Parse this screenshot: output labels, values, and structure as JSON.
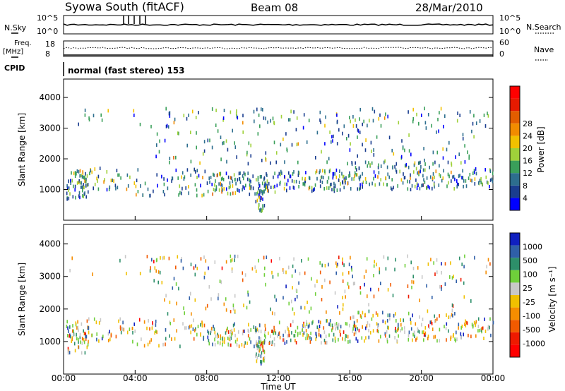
{
  "header": {
    "title": "Syowa South (fitACF)",
    "beam": "Beam 08",
    "date": "28/Mar/2010"
  },
  "top_panels": {
    "nsky_label": "N.Sky",
    "nsearch_label": "N.Search",
    "power_axis_ticks": [
      "10^5",
      "10^0"
    ],
    "freq_label": "Freq.",
    "freq_unit": "[MHz]",
    "freq_ticks": [
      "18",
      "8"
    ],
    "nave_label": "Nave",
    "nave_ticks": [
      "60",
      "0"
    ],
    "cpid_label": "CPID",
    "cpid_text": "normal (fast stereo) 153"
  },
  "colors": {
    "power_scale": [
      "#0000ff",
      "#1a3d8f",
      "#2d6e8e",
      "#3a9f5a",
      "#9fd13a",
      "#f2c100",
      "#f28c00",
      "#e35d00",
      "#e61a00",
      "#ff0000"
    ],
    "velocity_scale": [
      "#1020c0",
      "#2f5fa8",
      "#2d8f6a",
      "#6fcf3a",
      "#c8c8c8",
      "#f0c000",
      "#f58d00",
      "#f25a00",
      "#ee1a00",
      "#ff0000"
    ]
  },
  "chart_data": [
    {
      "type": "heatmap",
      "panel": "power",
      "ylabel": "Slant Range [km]",
      "yticks": [
        "1000",
        "2000",
        "3000",
        "4000"
      ],
      "ylim": [
        0,
        4600
      ],
      "xlim_hours": [
        0,
        24
      ],
      "colorbar_label": "Power [dB]",
      "colorbar_ticks": [
        "4",
        "8",
        "12",
        "16",
        "20",
        "24",
        "28"
      ],
      "colorbar_range": [
        0,
        30
      ]
    },
    {
      "type": "heatmap",
      "panel": "velocity",
      "xlabel": "Time UT",
      "xticks": [
        "00:00",
        "04:00",
        "08:00",
        "12:00",
        "16:00",
        "20:00",
        "00:00"
      ],
      "ylabel": "Slant Range [km]",
      "yticks": [
        "1000",
        "2000",
        "3000",
        "4000"
      ],
      "ylim": [
        0,
        4600
      ],
      "xlim_hours": [
        0,
        24
      ],
      "colorbar_label": "Velocity [m s⁻¹]",
      "colorbar_ticks": [
        "1000",
        "500",
        "100",
        "25",
        "-25",
        "-100",
        "-500",
        "-1000"
      ]
    }
  ]
}
